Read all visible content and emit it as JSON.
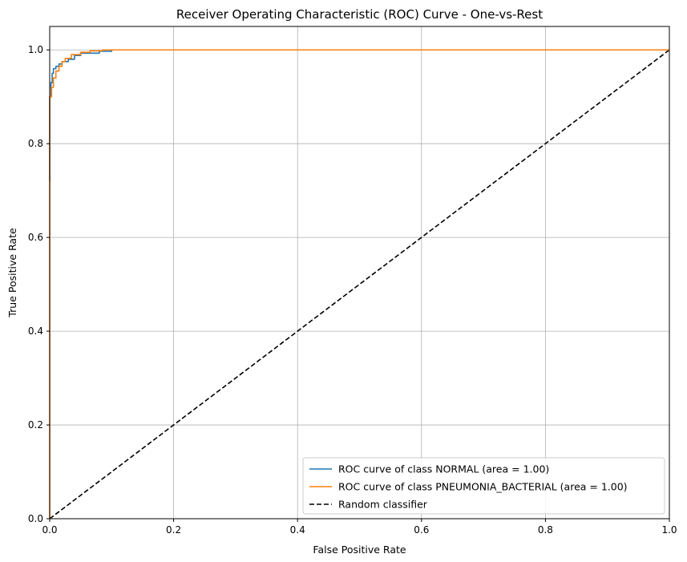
{
  "chart_data": {
    "type": "line",
    "title": "Receiver Operating Characteristic (ROC) Curve - One-vs-Rest",
    "xlabel": "False Positive Rate",
    "ylabel": "True Positive Rate",
    "xlim": [
      0.0,
      1.0
    ],
    "ylim": [
      0.0,
      1.05
    ],
    "xticks": [
      0.0,
      0.2,
      0.4,
      0.6,
      0.8,
      1.0
    ],
    "yticks": [
      0.0,
      0.2,
      0.4,
      0.6,
      0.8,
      1.0
    ],
    "xtick_labels": [
      "0.0",
      "0.2",
      "0.4",
      "0.6",
      "0.8",
      "1.0"
    ],
    "ytick_labels": [
      "0.0",
      "0.2",
      "0.4",
      "0.6",
      "0.8",
      "1.0"
    ],
    "grid": true,
    "legend_position": "lower-right",
    "series": [
      {
        "name": "ROC curve of class NORMAL (area = 1.00)",
        "color": "#1f77b4",
        "style": "solid",
        "x": [
          0.0,
          0.0,
          0.002,
          0.002,
          0.004,
          0.004,
          0.006,
          0.006,
          0.01,
          0.01,
          0.015,
          0.015,
          0.02,
          0.02,
          0.03,
          0.03,
          0.04,
          0.04,
          0.05,
          0.05,
          0.08,
          0.08,
          0.1,
          0.1,
          0.28
        ],
        "y": [
          0.72,
          0.9,
          0.9,
          0.93,
          0.93,
          0.95,
          0.95,
          0.96,
          0.96,
          0.965,
          0.965,
          0.97,
          0.97,
          0.975,
          0.975,
          0.98,
          0.98,
          0.988,
          0.988,
          0.993,
          0.993,
          0.997,
          0.997,
          1.0,
          1.0
        ]
      },
      {
        "name": "ROC curve of class PNEUMONIA_BACTERIAL (area = 1.00)",
        "color": "#ff7f0e",
        "style": "solid",
        "x": [
          0.0,
          0.0,
          0.003,
          0.003,
          0.006,
          0.006,
          0.01,
          0.01,
          0.015,
          0.015,
          0.02,
          0.02,
          0.025,
          0.025,
          0.035,
          0.035,
          0.05,
          0.05,
          0.065,
          0.065,
          0.085,
          0.085,
          1.0
        ],
        "y": [
          0.0,
          0.9,
          0.9,
          0.92,
          0.92,
          0.94,
          0.94,
          0.955,
          0.955,
          0.965,
          0.965,
          0.975,
          0.975,
          0.982,
          0.982,
          0.99,
          0.99,
          0.995,
          0.995,
          0.998,
          0.998,
          1.0,
          1.0
        ]
      },
      {
        "name": "Random classifier",
        "color": "#000000",
        "style": "dashed",
        "x": [
          0.0,
          1.0
        ],
        "y": [
          0.0,
          1.0
        ]
      }
    ]
  }
}
